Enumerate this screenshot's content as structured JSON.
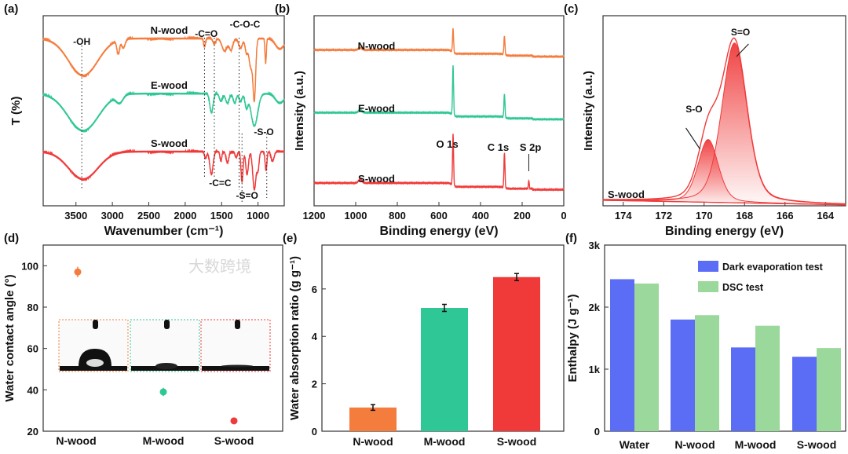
{
  "watermark": "大数跨境",
  "colors": {
    "orange": "#f47c3c",
    "green": "#2fc795",
    "red": "#f03a3a",
    "blue": "#5b6cf5",
    "lightgreen": "#9bd89b"
  },
  "chart_data": [
    {
      "panel_label": "(a)",
      "type": "line",
      "xlabel": "Wavenumber (cm⁻¹)",
      "ylabel": "T (%)",
      "xlim": [
        3950,
        640
      ],
      "ylim": [
        0,
        10
      ],
      "xticks": [
        "3500",
        "3000",
        "2500",
        "2000",
        "1500",
        "1000"
      ],
      "xtick_values": [
        3500,
        3000,
        2500,
        2000,
        1500,
        1000
      ],
      "series": [
        {
          "name": "N-wood",
          "color": "#f47c3c",
          "baseline": 8.8,
          "peaks": [
            [
              3400,
              1.95,
              200
            ],
            [
              2920,
              0.7,
              18
            ],
            [
              2850,
              0.45,
              25
            ],
            [
              1735,
              0.45,
              12
            ],
            [
              1600,
              0.3,
              18
            ],
            [
              1460,
              0.65,
              35
            ],
            [
              1370,
              0.6,
              25
            ],
            [
              1240,
              0.5,
              25
            ],
            [
              1160,
              0.7,
              18
            ],
            [
              1100,
              1.5,
              25
            ],
            [
              1050,
              3.1,
              18
            ],
            [
              895,
              1.3,
              9
            ],
            [
              700,
              0.55,
              60
            ]
          ]
        },
        {
          "name": "E-wood",
          "color": "#2fc795",
          "baseline": 5.9,
          "peaks": [
            [
              3400,
              1.95,
              210
            ],
            [
              2900,
              0.4,
              45
            ],
            [
              1640,
              1.0,
              22
            ],
            [
              1510,
              0.4,
              20
            ],
            [
              1420,
              0.5,
              25
            ],
            [
              1320,
              0.5,
              20
            ],
            [
              1240,
              0.4,
              20
            ],
            [
              1160,
              0.7,
              20
            ],
            [
              1050,
              1.7,
              45
            ],
            [
              700,
              0.5,
              60
            ]
          ]
        },
        {
          "name": "S-wood",
          "color": "#f03a3a",
          "baseline": 2.85,
          "peaks": [
            [
              3400,
              1.45,
              200
            ],
            [
              1720,
              0.35,
              15
            ],
            [
              1640,
              1.2,
              22
            ],
            [
              1510,
              0.5,
              12
            ],
            [
              1420,
              0.6,
              18
            ],
            [
              1300,
              0.3,
              15
            ],
            [
              1220,
              1.6,
              14
            ],
            [
              1150,
              1.2,
              18
            ],
            [
              1050,
              2.0,
              22
            ],
            [
              1000,
              0.9,
              15
            ],
            [
              890,
              1.0,
              12
            ],
            [
              800,
              0.5,
              20
            ],
            [
              580,
              2.3,
              14
            ]
          ]
        }
      ],
      "annotations": [
        "-OH",
        "-C=O",
        "-C-O-C",
        "-C=C",
        "-S=O",
        "-S-O"
      ],
      "annotation_wavenumbers": [
        3420,
        1735,
        1600,
        1260,
        1220,
        880
      ]
    },
    {
      "panel_label": "(b)",
      "type": "line",
      "xlabel": "Binding energy (eV)",
      "ylabel": "Intensity (a.u.)",
      "xlim": [
        1200,
        0
      ],
      "ylim": [
        0,
        10
      ],
      "xticks": [
        "1200",
        "1000",
        "800",
        "600",
        "400",
        "200",
        "0"
      ],
      "xtick_values": [
        1200,
        1000,
        800,
        600,
        400,
        200,
        0
      ],
      "series": [
        {
          "name": "N-wood",
          "color": "#f47c3c",
          "baseline": 7.9,
          "peaks": [
            [
              532,
              1.25,
              2.5
            ],
            [
              285,
              1.0,
              2.5
            ],
            [
              978,
              0.12,
              8
            ]
          ]
        },
        {
          "name": "E-wood",
          "color": "#2fc795",
          "baseline": 4.6,
          "peaks": [
            [
              532,
              2.6,
              2.5
            ],
            [
              285,
              1.25,
              2.5
            ],
            [
              978,
              0.15,
              8
            ]
          ]
        },
        {
          "name": "S-wood",
          "color": "#f03a3a",
          "baseline": 0.9,
          "peaks": [
            [
              532,
              2.7,
              2.5
            ],
            [
              285,
              1.85,
              2.5
            ],
            [
              168,
              0.45,
              2
            ],
            [
              978,
              0.2,
              8
            ]
          ]
        }
      ],
      "peak_labels": [
        "O 1s",
        "C 1s",
        "S 2p"
      ]
    },
    {
      "panel_label": "(c)",
      "type": "line",
      "xlabel": "Binding energy (eV)",
      "ylabel": "Intensity (a.u.)",
      "xlim": [
        175,
        163
      ],
      "ylim": [
        0,
        10
      ],
      "xticks": [
        "174",
        "172",
        "170",
        "168",
        "166",
        "164"
      ],
      "xtick_values": [
        174,
        172,
        170,
        168,
        166,
        164
      ],
      "sample": "S-wood",
      "components": [
        {
          "name": "S=O",
          "center": 168.5,
          "height": 8.4,
          "width": 0.62
        },
        {
          "name": "S-O",
          "center": 169.8,
          "height": 3.3,
          "width": 0.5
        }
      ],
      "color": "#f03a3a"
    },
    {
      "panel_label": "(d)",
      "type": "scatter",
      "ylabel": "Water contact angle (°)",
      "ylim": [
        20,
        110
      ],
      "yticks": [
        "20",
        "40",
        "60",
        "80",
        "100"
      ],
      "ytick_values": [
        20,
        40,
        60,
        80,
        100
      ],
      "categories": [
        "N-wood",
        "M-wood",
        "S-wood"
      ],
      "values": [
        97,
        39,
        25
      ],
      "errors": [
        2.5,
        2,
        1.5
      ],
      "colors": [
        "#f47c3c",
        "#2fc795",
        "#f03a3a"
      ]
    },
    {
      "panel_label": "(e)",
      "type": "bar",
      "ylabel": "Water absorption ratio (g g⁻¹)",
      "ylim": [
        0,
        7.85
      ],
      "yticks": [
        "0",
        "2",
        "4",
        "6"
      ],
      "ytick_values": [
        0,
        2,
        4,
        6
      ],
      "categories": [
        "N-wood",
        "M-wood",
        "S-wood"
      ],
      "values": [
        1.0,
        5.2,
        6.5
      ],
      "errors": [
        0.12,
        0.15,
        0.15
      ],
      "colors": [
        "#f47c3c",
        "#2fc795",
        "#f03a3a"
      ]
    },
    {
      "panel_label": "(f)",
      "type": "bar",
      "ylabel": "Enthalpy (J g⁻¹)",
      "ylim": [
        0,
        3000
      ],
      "yticks": [
        "0",
        "1k",
        "2k",
        "3k"
      ],
      "ytick_values": [
        0,
        1000,
        2000,
        3000
      ],
      "categories": [
        "Water",
        "N-wood",
        "M-wood",
        "S-wood"
      ],
      "series": [
        {
          "name": "Dark evaporation test",
          "color": "#5b6cf5",
          "values": [
            2450,
            1800,
            1350,
            1200
          ]
        },
        {
          "name": "DSC test",
          "color": "#9bd89b",
          "values": [
            2380,
            1870,
            1700,
            1340
          ]
        }
      ],
      "legend": "top-right"
    }
  ]
}
